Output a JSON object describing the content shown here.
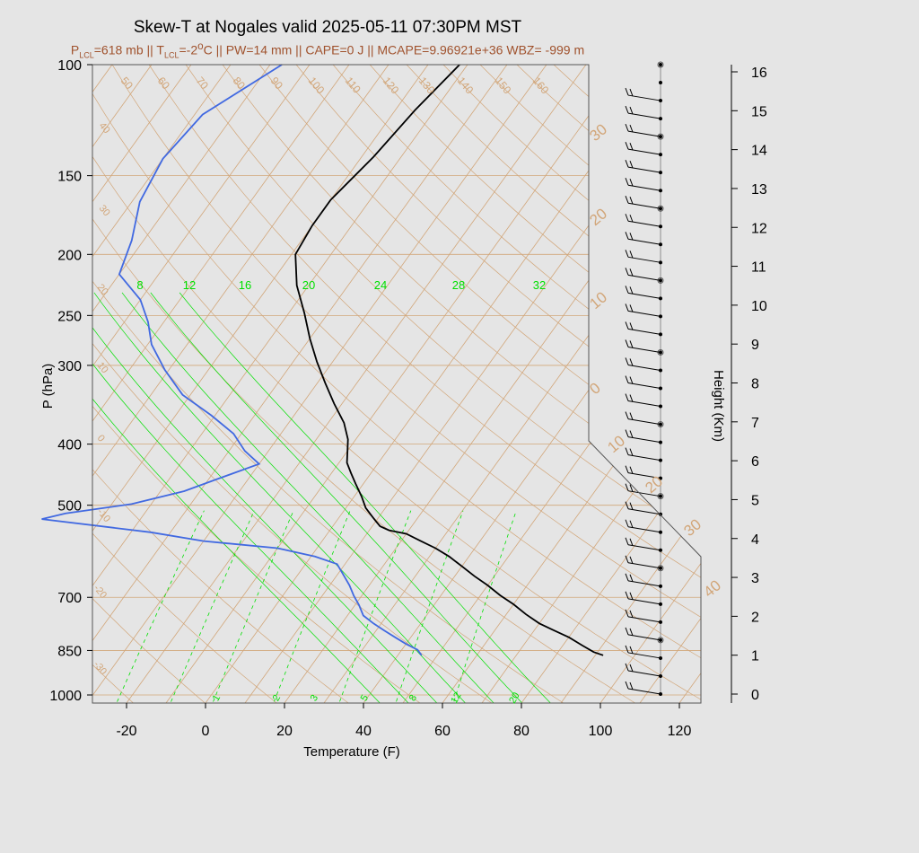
{
  "chart_data": {
    "type": "line",
    "title": "Skew-T at Nogales valid 2025-05-11 07:30PM MST",
    "subtitle": {
      "p_lcl": "=618 mb",
      "t_lcl": "=-2",
      "t_lcl_unit": "C",
      "rest": "|| PW=14 mm || CAPE=0 J || MCAPE=9.96921e+36 WBZ= -999 m"
    },
    "xlabel": "Temperature (F)",
    "ylabel": "P (hPa)",
    "y2label": "Height (Km)",
    "xlim": [
      -28,
      125
    ],
    "ylim": [
      1030,
      100
    ],
    "x_ticks": [
      "-20",
      "0",
      "20",
      "40",
      "60",
      "80",
      "100",
      "120"
    ],
    "y_ticks": [
      "100",
      "150",
      "200",
      "250",
      "300",
      "400",
      "500",
      "700",
      "850",
      "1000"
    ],
    "height_ticks": [
      "0",
      "1",
      "2",
      "3",
      "4",
      "5",
      "6",
      "7",
      "8",
      "9",
      "10",
      "11",
      "12",
      "13",
      "14",
      "15",
      "16"
    ],
    "mixing_ratio_labels": [
      "8",
      "12",
      "16",
      "20",
      "24",
      "28",
      "32"
    ],
    "mixing_ratio_bottom_labels": [
      "1",
      "2",
      "3",
      "5",
      "8",
      "12",
      "20"
    ],
    "isotherm_labels": [
      "50",
      "60",
      "70",
      "80",
      "90",
      "100",
      "110",
      "120",
      "130",
      "140",
      "150",
      "160"
    ],
    "isotherm_right_labels": [
      "30",
      "20",
      "10",
      "0",
      "10",
      "20",
      "30",
      "40"
    ],
    "dry_adiabat_labels": [
      "40",
      "30",
      "20",
      "10",
      "0",
      "-10",
      "-20",
      "-30"
    ],
    "colors": {
      "temperature": "#000000",
      "dewpoint": "#4169e1",
      "isotherm": "#d2a679",
      "mixing": "#00e000",
      "label": "#a0522d"
    },
    "series": [
      {
        "name": "",
        "color": "#000000",
        "points": [
          [
            92,
            865
          ],
          [
            89,
            855
          ],
          [
            85,
            835
          ],
          [
            80,
            810
          ],
          [
            75,
            790
          ],
          [
            70,
            770
          ],
          [
            65,
            745
          ],
          [
            60,
            718
          ],
          [
            55,
            695
          ],
          [
            50,
            670
          ],
          [
            45,
            648
          ],
          [
            40,
            625
          ],
          [
            35,
            603
          ],
          [
            30,
            585
          ],
          [
            25,
            570
          ],
          [
            20,
            555
          ],
          [
            15,
            548
          ],
          [
            12,
            540
          ],
          [
            10,
            530
          ],
          [
            8,
            520
          ],
          [
            5,
            505
          ],
          [
            2,
            485
          ],
          [
            -2,
            462
          ],
          [
            -5,
            445
          ],
          [
            -8,
            428
          ],
          [
            -10,
            410
          ],
          [
            -12,
            393
          ],
          [
            -16,
            370
          ],
          [
            -22,
            345
          ],
          [
            -28,
            320
          ],
          [
            -34,
            296
          ],
          [
            -40,
            272
          ],
          [
            -46,
            248
          ],
          [
            -53,
            224
          ],
          [
            -59,
            200
          ],
          [
            -60,
            180
          ],
          [
            -60,
            164
          ],
          [
            -57,
            140
          ],
          [
            -55,
            118
          ],
          [
            -52,
            100
          ]
        ]
      },
      {
        "name": "",
        "color": "#4169e1",
        "points": [
          [
            46,
            865
          ],
          [
            44,
            848
          ],
          [
            40,
            830
          ],
          [
            36,
            810
          ],
          [
            32,
            790
          ],
          [
            28,
            770
          ],
          [
            24,
            748
          ],
          [
            21,
            720
          ],
          [
            18,
            696
          ],
          [
            15,
            670
          ],
          [
            12,
            648
          ],
          [
            8,
            620
          ],
          [
            1,
            603
          ],
          [
            -10,
            585
          ],
          [
            -30,
            570
          ],
          [
            -45,
            552
          ],
          [
            -75,
            526
          ],
          [
            -70,
            515
          ],
          [
            -55,
            498
          ],
          [
            -44,
            475
          ],
          [
            -38,
            455
          ],
          [
            -30,
            430
          ],
          [
            -36,
            410
          ],
          [
            -42,
            385
          ],
          [
            -51,
            360
          ],
          [
            -62,
            334
          ],
          [
            -71,
            305
          ],
          [
            -79,
            278
          ],
          [
            -84,
            256
          ],
          [
            -90,
            236
          ],
          [
            -100,
            215
          ],
          [
            -103,
            190
          ],
          [
            -108,
            165
          ],
          [
            -110,
            141
          ],
          [
            -108,
            120
          ],
          [
            -97,
            100
          ]
        ]
      }
    ],
    "wind_barbs_count": 36
  }
}
